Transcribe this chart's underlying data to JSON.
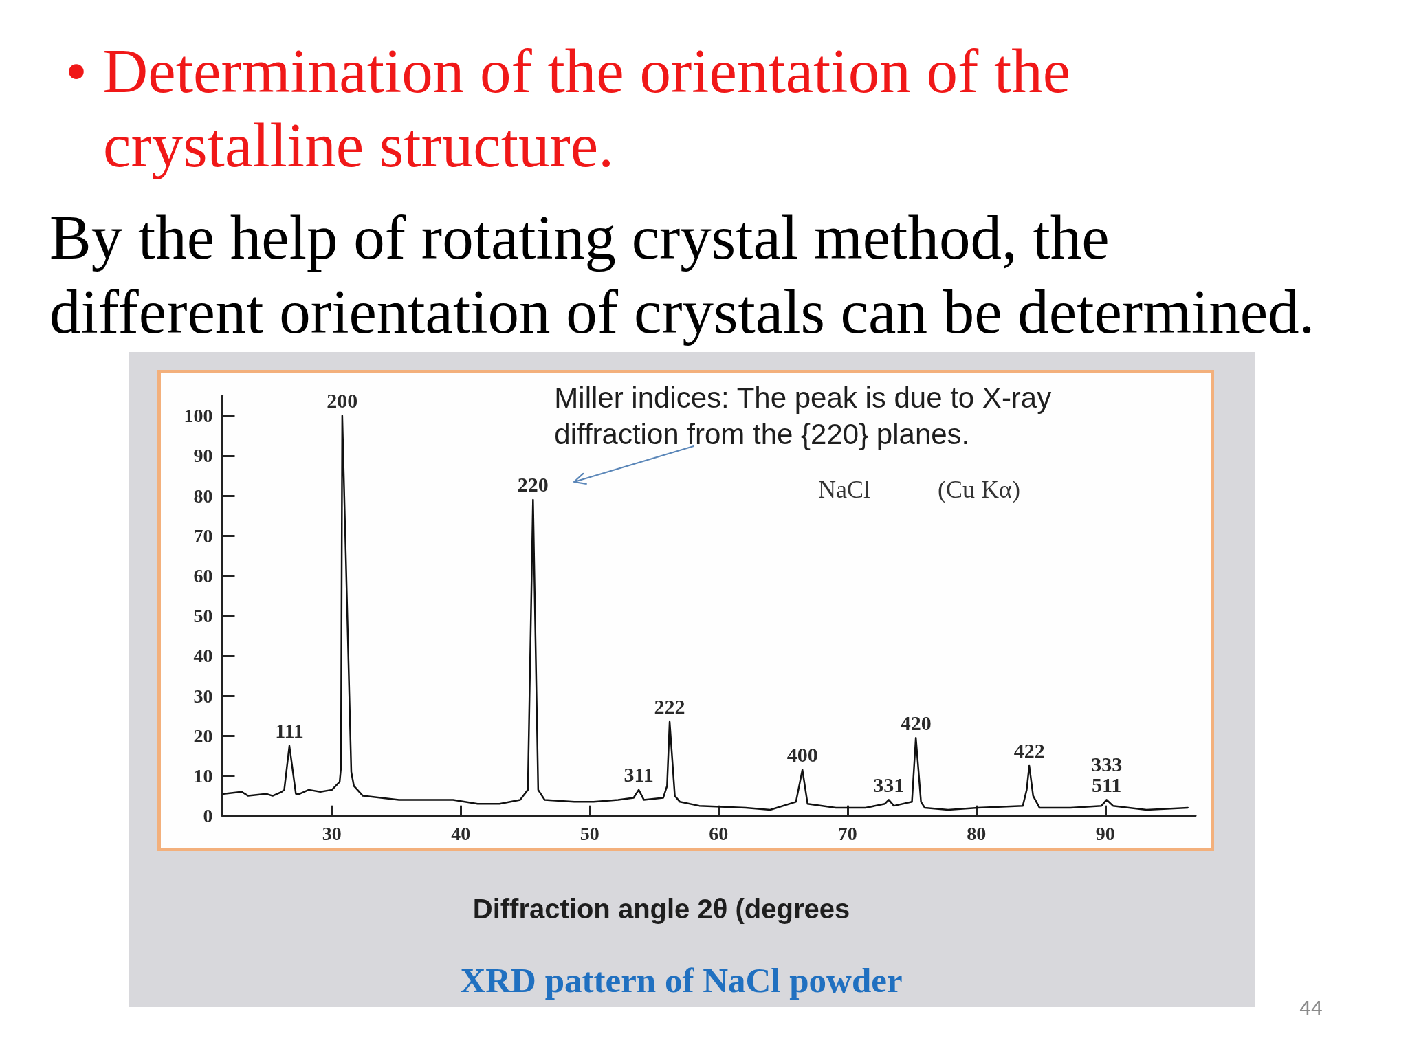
{
  "chart_data": {
    "type": "line",
    "title": "• Determination of the orientation of the crystalline structure.",
    "subtitle": "By the help of rotating crystal method, the different orientation of crystals can be determined.",
    "xlabel": "Diffraction angle 2θ (degrees",
    "x": [
      21.6,
      23.0,
      23.5,
      24.9,
      25.4,
      26.1,
      26.3,
      26.7,
      27.2,
      27.5,
      28.2,
      29.1,
      30.0,
      30.6,
      30.7,
      30.8,
      31.5,
      31.7,
      32.4,
      33.8,
      35.2,
      37.1,
      39.4,
      41.3,
      43.0,
      44.6,
      45.2,
      45.6,
      46.0,
      46.5,
      48.8,
      50.3,
      52.2,
      53.4,
      53.8,
      54.2,
      55.7,
      56.0,
      56.2,
      56.6,
      57.0,
      58.5,
      62.1,
      64.0,
      66.0,
      66.5,
      66.9,
      69.1,
      71.4,
      72.9,
      73.2,
      73.6,
      75.0,
      75.3,
      75.7,
      76.0,
      77.8,
      80.1,
      83.6,
      83.9,
      84.1,
      84.4,
      84.9,
      87.3,
      89.7,
      90.1,
      90.6,
      93.2,
      96.4
    ],
    "values": [
      5.5,
      6,
      5,
      5.5,
      5,
      6,
      6.5,
      17.5,
      5.5,
      5.5,
      6.5,
      6,
      6.5,
      8.5,
      12,
      100,
      11,
      7.5,
      5,
      4.5,
      4,
      4,
      4,
      3,
      3,
      4,
      6.5,
      79,
      6.5,
      4,
      3.5,
      3.5,
      4,
      4.5,
      6.5,
      4,
      4.5,
      7.5,
      23.5,
      5,
      3.5,
      2.5,
      2,
      1.5,
      3.5,
      11.5,
      3,
      2,
      2,
      3,
      4,
      2.5,
      3.5,
      19.5,
      3.5,
      2,
      1.5,
      2,
      2.5,
      6.5,
      12.5,
      5,
      2,
      2,
      2.5,
      4,
      2.5,
      1.5,
      2
    ],
    "color": "#111111",
    "xlim": [
      21.5,
      97
    ],
    "xticks": [
      30,
      40,
      50,
      60,
      70,
      80,
      90
    ],
    "ylim": [
      0,
      105
    ],
    "yticks": [
      0,
      10,
      20,
      30,
      40,
      50,
      60,
      70,
      80,
      90,
      100
    ],
    "grid": false,
    "marker": "none",
    "line_style": "solid",
    "annotations": [
      {
        "text": "111",
        "x": 26.7,
        "y": 17.5
      },
      {
        "text": "200",
        "x": 30.8,
        "y": 100
      },
      {
        "text": "220",
        "x": 45.6,
        "y": 79
      },
      {
        "text": "311",
        "x": 53.8,
        "y": 6.5
      },
      {
        "text": "222",
        "x": 56.2,
        "y": 23.5
      },
      {
        "text": "400",
        "x": 66.5,
        "y": 11.5
      },
      {
        "text": "331",
        "x": 73.2,
        "y": 4
      },
      {
        "text": "420",
        "x": 75.3,
        "y": 19.5
      },
      {
        "text": "422",
        "x": 84.1,
        "y": 12.5
      },
      {
        "text": "333\n511",
        "x": 90.1,
        "y": 4
      },
      {
        "text": "Miller indices: The peak is due to X-ray diffraction from the {220} planes.",
        "x": 45.6,
        "y": 79
      },
      "NaCl",
      "(Cu Kα)",
      "XRD pattern of NaCl powder",
      "44"
    ]
  }
}
